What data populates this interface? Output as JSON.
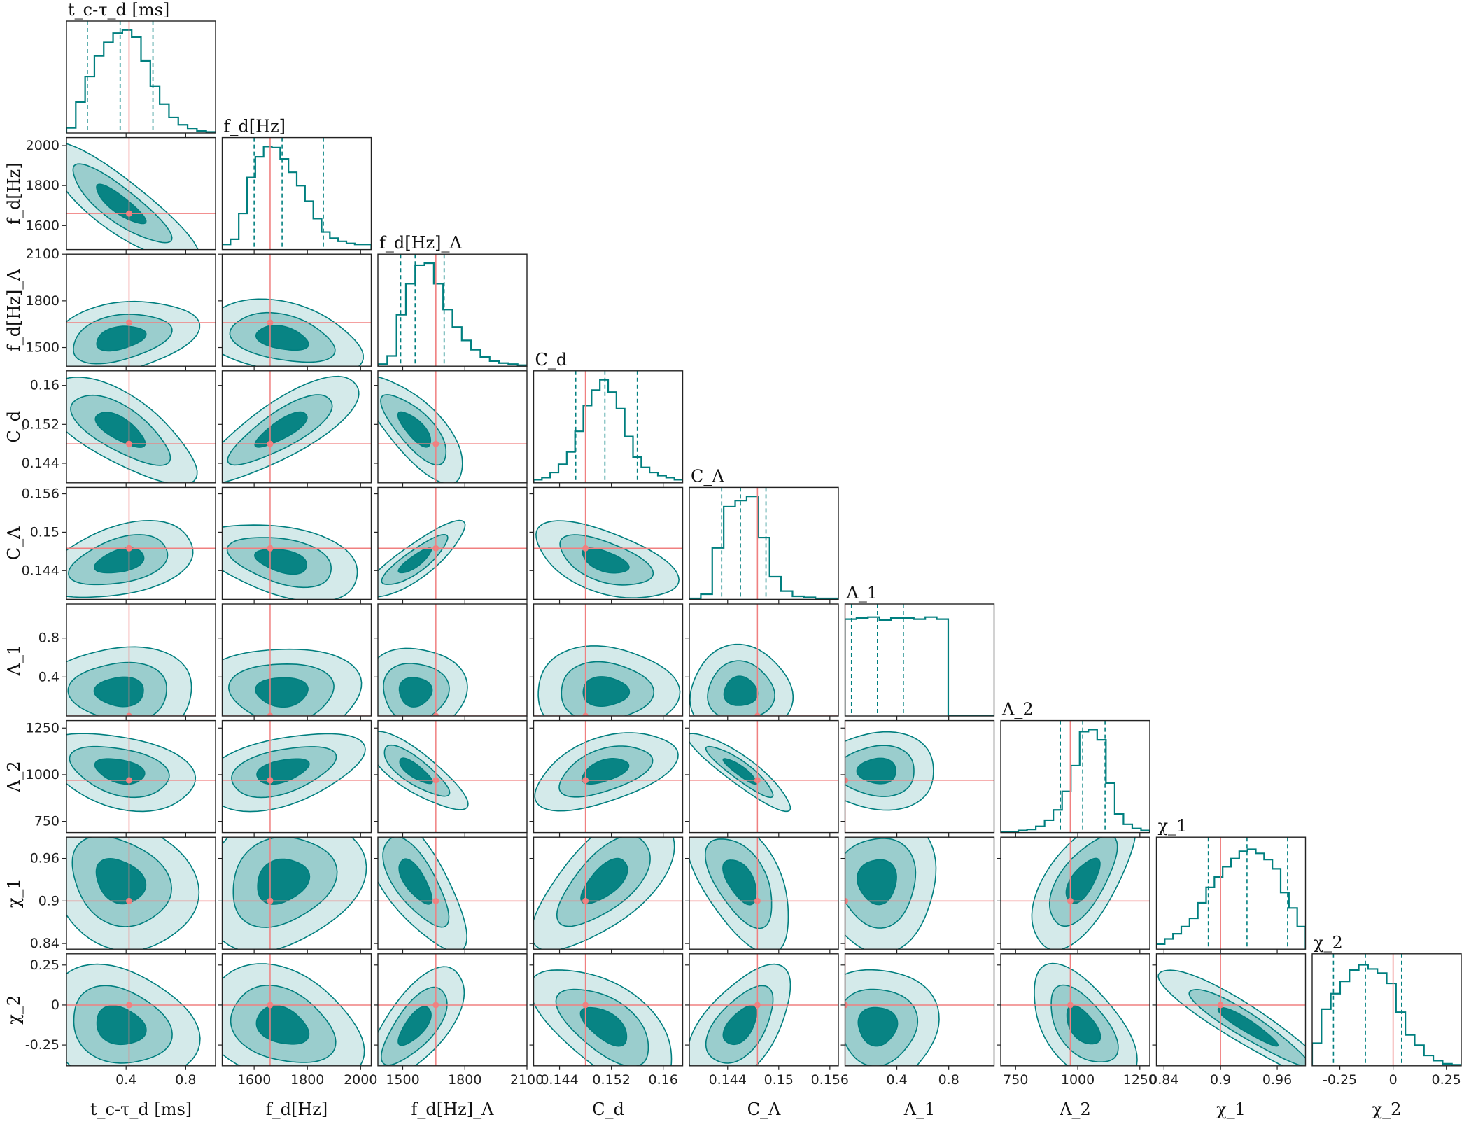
{
  "chart_data": {
    "type": "corner",
    "params": [
      {
        "key": "tc",
        "label": "t_c-τ_d [ms]",
        "range": [
          0.0,
          1.0
        ],
        "ticks": [
          0.4,
          0.8
        ],
        "truth": 0.42,
        "q": [
          0.14,
          0.36,
          0.58
        ]
      },
      {
        "key": "fd",
        "label": "f_d[Hz]",
        "range": [
          1480,
          2040
        ],
        "ticks": [
          1600,
          1800,
          2000
        ],
        "truth": 1660,
        "q": [
          1600,
          1705,
          1860
        ]
      },
      {
        "key": "fdL",
        "label": "f_d[Hz]_Λ",
        "range": [
          1380,
          2100
        ],
        "ticks": [
          1500,
          1800,
          2100
        ],
        "truth": 1660,
        "q": [
          1490,
          1560,
          1700
        ]
      },
      {
        "key": "Cd",
        "label": "C_d",
        "range": [
          0.14,
          0.163
        ],
        "ticks": [
          0.144,
          0.152,
          0.16
        ],
        "truth": 0.148,
        "q": [
          0.1465,
          0.151,
          0.156
        ]
      },
      {
        "key": "CL",
        "label": "C_Λ",
        "range": [
          0.1395,
          0.157
        ],
        "ticks": [
          0.144,
          0.15,
          0.156
        ],
        "truth": 0.1475,
        "q": [
          0.1433,
          0.1455,
          0.1485
        ]
      },
      {
        "key": "L1",
        "label": "Λ_1",
        "range": [
          0.0,
          1.15
        ],
        "ticks": [
          0.4,
          0.8
        ],
        "truth": 0.0,
        "q": [
          0.05,
          0.25,
          0.45
        ]
      },
      {
        "key": "L2",
        "label": "Λ_2",
        "range": [
          690,
          1290
        ],
        "ticks": [
          750,
          1000,
          1250
        ],
        "truth": 970,
        "q": [
          930,
          1020,
          1110
        ]
      },
      {
        "key": "x1",
        "label": "χ_1",
        "range": [
          0.832,
          0.99
        ],
        "ticks": [
          0.84,
          0.9,
          0.96
        ],
        "truth": 0.9,
        "q": [
          0.887,
          0.928,
          0.971
        ]
      },
      {
        "key": "x2",
        "label": "χ_2",
        "range": [
          -0.38,
          0.32
        ],
        "ticks": [
          -0.25,
          0.0,
          0.25
        ],
        "truth": 0.0,
        "q": [
          -0.28,
          -0.13,
          0.04
        ]
      }
    ],
    "histograms": [
      [
        0.05,
        0.3,
        0.55,
        0.75,
        0.88,
        0.97,
        1.0,
        0.93,
        0.7,
        0.45,
        0.28,
        0.15,
        0.08,
        0.04,
        0.02,
        0.01
      ],
      [
        0.05,
        0.1,
        0.35,
        0.7,
        0.9,
        1.0,
        0.99,
        0.88,
        0.75,
        0.62,
        0.47,
        0.3,
        0.17,
        0.11,
        0.08,
        0.06,
        0.05,
        0.05
      ],
      [
        0.02,
        0.1,
        0.5,
        0.8,
        0.98,
        1.0,
        0.8,
        0.55,
        0.38,
        0.25,
        0.16,
        0.09,
        0.05,
        0.03,
        0.02,
        0.01
      ],
      [
        0.03,
        0.05,
        0.1,
        0.18,
        0.3,
        0.5,
        0.75,
        0.9,
        1.0,
        0.88,
        0.72,
        0.45,
        0.25,
        0.15,
        0.1,
        0.07,
        0.05,
        0.03
      ],
      [
        0.01,
        0.05,
        0.5,
        0.9,
        0.96,
        1.0,
        0.6,
        0.22,
        0.08,
        0.03,
        0.02,
        0.01,
        0.01
      ],
      [
        0.94,
        0.95,
        0.96,
        0.93,
        0.95,
        0.95,
        0.94,
        0.96,
        0.94,
        0.0,
        0.0,
        0.0,
        0.0
      ],
      [
        0.01,
        0.01,
        0.02,
        0.03,
        0.06,
        0.12,
        0.22,
        0.4,
        0.65,
        0.98,
        1.0,
        0.9,
        0.48,
        0.18,
        0.08,
        0.04,
        0.02
      ],
      [
        0.05,
        0.1,
        0.15,
        0.22,
        0.3,
        0.45,
        0.6,
        0.7,
        0.8,
        0.88,
        0.95,
        0.97,
        0.93,
        0.87,
        0.78,
        0.55,
        0.4,
        0.22
      ],
      [
        0.22,
        0.55,
        0.7,
        0.82,
        0.93,
        0.98,
        0.94,
        0.9,
        0.8,
        0.52,
        0.3,
        0.2,
        0.1,
        0.05,
        0.02,
        0.01
      ]
    ],
    "contour_levels": [
      "39%",
      "86%",
      "99%"
    ],
    "colors": {
      "fill": "#008080",
      "line": "#007f7f",
      "truth": "#f08080",
      "frame": "#222222"
    },
    "axis_titles_bottom": [
      "t_c-τ_d [ms]",
      "f_d[Hz]",
      "f_d[Hz]_Λ",
      "C_d",
      "C_Λ",
      "Λ_1",
      "Λ_2",
      "χ_1",
      "χ_2"
    ],
    "axis_titles_left": [
      "f_d[Hz]",
      "f_d[Hz]_Λ",
      "C_d",
      "C_Λ",
      "Λ_1",
      "Λ_2",
      "χ_1",
      "χ_2"
    ]
  }
}
